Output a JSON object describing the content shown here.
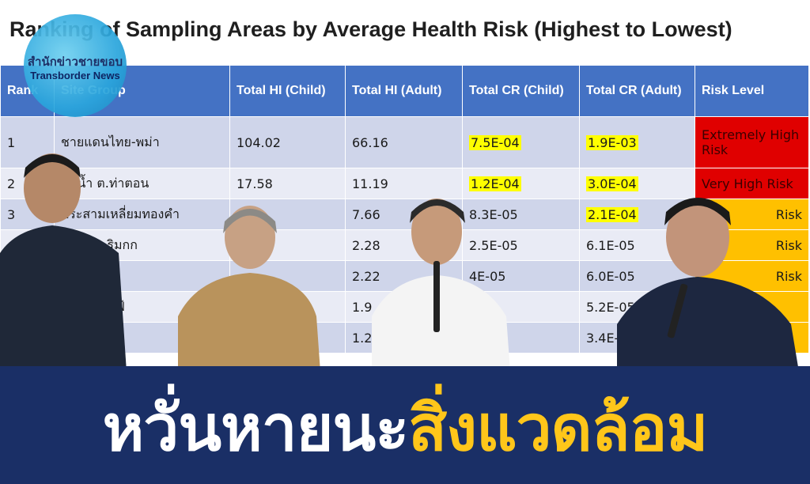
{
  "slide": {
    "title": "Ranking of Sampling Areas by Average Health Risk (Highest to Lowest)"
  },
  "logo": {
    "thai": "สำนักข่าวชายขอบ",
    "english": "Transborder News"
  },
  "table": {
    "headers": [
      "Rank",
      "Site Group",
      "Total HI (Child)",
      "Total HI (Adult)",
      "Total CR (Child)",
      "Total CR (Adult)",
      "Risk Level"
    ],
    "rows": [
      {
        "rank": "1",
        "site": "ชายแดนไทย-พม่า",
        "hi_child": "104.02",
        "hi_adult": "66.16",
        "cr_child": "7.5E-04",
        "cr_adult": "1.9E-03",
        "risk": "Extremely High Risk"
      },
      {
        "rank": "2",
        "site": "ลุ่มน้ำ ต.ท่าตอน",
        "hi_child": "17.58",
        "hi_adult": "11.19",
        "cr_child": "1.2E-04",
        "cr_adult": "3.0E-04",
        "risk": "Very High Risk"
      },
      {
        "rank": "3",
        "site": "ประสามเหลี่ยมทองคำ",
        "hi_child": "",
        "hi_adult": "7.66",
        "cr_child": "8.3E-05",
        "cr_adult": "2.1E-04",
        "risk": "Risk"
      },
      {
        "rank": "4",
        "site": "ารักษ์ ต.ริมกก",
        "hi_child": "",
        "hi_adult": "2.28",
        "cr_child": "2.5E-05",
        "cr_adult": "6.1E-05",
        "risk": "Risk"
      },
      {
        "rank": "",
        "site": "ราย",
        "hi_child": "",
        "hi_adult": "2.22",
        "cr_child": "4E-05",
        "cr_adult": "6.0E-05",
        "risk": "Risk"
      },
      {
        "rank": "",
        "site": "บ้านฟาร์มฟ้",
        "hi_child": "",
        "hi_adult": "1.9",
        "cr_child": "05",
        "cr_adult": "5.2E-05",
        "risk": ""
      },
      {
        "rank": "",
        "site": "แม่น้ำโขง",
        "hi_child": "",
        "hi_adult": "1.2",
        "cr_child": "05",
        "cr_adult": "3.4E-",
        "risk": ""
      }
    ]
  },
  "headline": {
    "part1": "หวั่นหายนะ",
    "part2": "สิ่งแวดล้อม"
  },
  "colors": {
    "table_header": "#4472c4",
    "highlight": "#ffff00",
    "extreme_risk": "#e00000",
    "high_risk": "#ffc000",
    "banner": "#1a2f66",
    "headline_accent": "#ffc61a"
  }
}
